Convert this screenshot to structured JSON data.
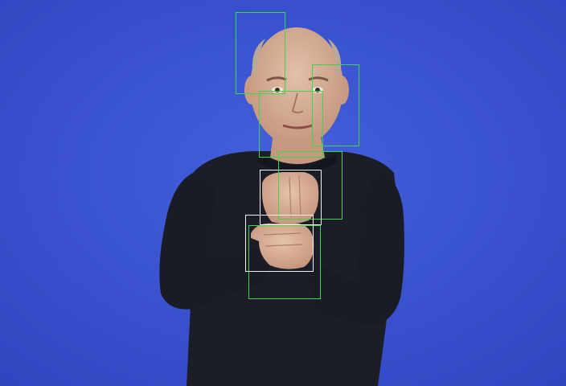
{
  "scene": {
    "subject": "signer",
    "background_color": "#3a53cf",
    "shirt_color": "#1c1e27",
    "skin_color": "#d9b29a"
  },
  "overlay": {
    "detection_box_color": "#3dd64a",
    "selection_box_color": "#f2f2f2",
    "boxes": [
      {
        "name": "detection-box-1",
        "kind": "detection"
      },
      {
        "name": "detection-box-2",
        "kind": "detection"
      },
      {
        "name": "detection-box-3",
        "kind": "detection"
      },
      {
        "name": "detection-box-4",
        "kind": "detection"
      },
      {
        "name": "detection-box-5",
        "kind": "detection"
      },
      {
        "name": "selection-box-1",
        "kind": "selection"
      },
      {
        "name": "selection-box-2",
        "kind": "selection"
      }
    ]
  }
}
